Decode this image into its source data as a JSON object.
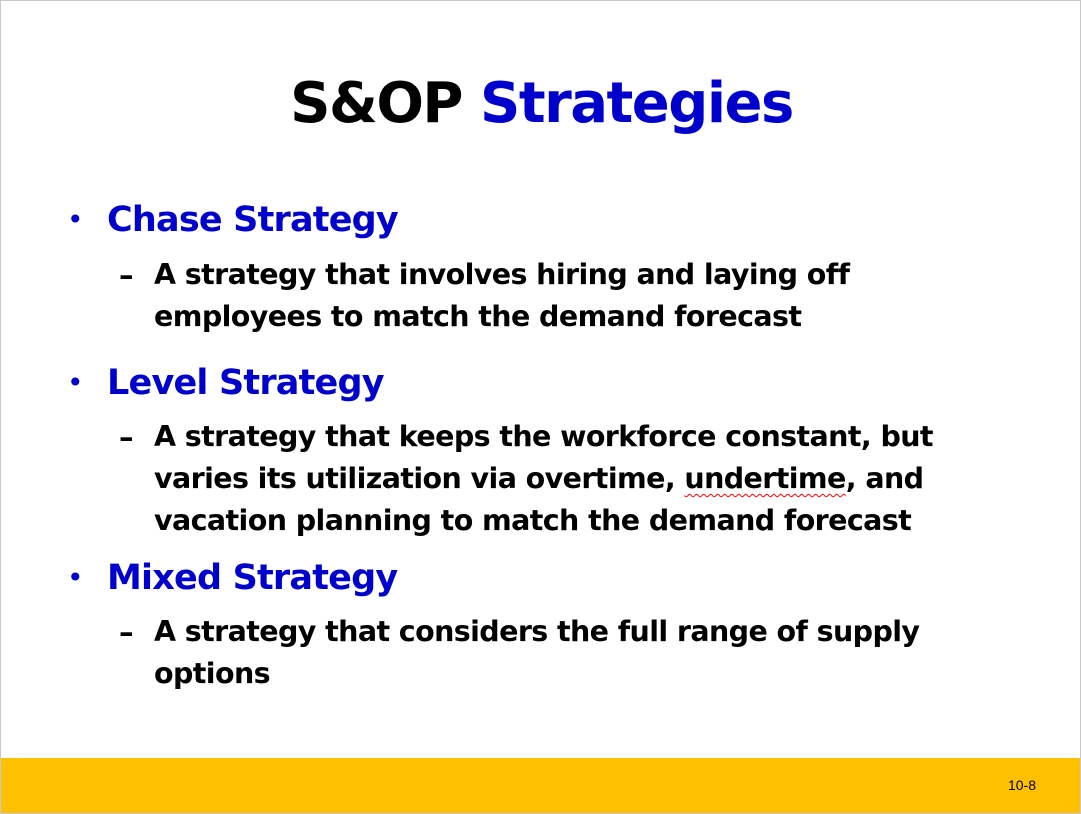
{
  "slide": {
    "title_black": "S&OP",
    "title_blue": "Strategies",
    "bullet_glyph": "•",
    "dash_glyph": "–",
    "bullets": [
      {
        "label": "Chase Strategy",
        "lines": [
          "A strategy that involves hiring and laying off",
          "employees to match the demand forecast"
        ]
      },
      {
        "label": "Level Strategy",
        "lines": [
          "A strategy that keeps the workforce constant, but",
          "varies its utilization via overtime, ",
          "undertime",
          ", and",
          "vacation planning to match the demand forecast"
        ]
      },
      {
        "label": "Mixed Strategy",
        "lines": [
          "A strategy that considers the full range of supply",
          "options"
        ]
      }
    ],
    "page_number": "10-8"
  },
  "colors": {
    "accent_blue": "#0000cc",
    "footer_bar": "#ffc000",
    "spellcheck_underline": "#ff0000"
  }
}
